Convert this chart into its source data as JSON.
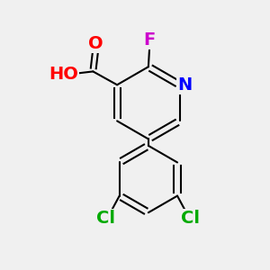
{
  "background_color": "#f0f0f0",
  "bond_color": "#000000",
  "atom_colors": {
    "O_carbonyl": "#ff0000",
    "O_hydroxyl": "#ff0000",
    "H": "#808080",
    "N": "#0000ff",
    "F": "#cc00cc",
    "Cl": "#00aa00",
    "C": "#000000"
  },
  "font_size_atoms": 14,
  "font_size_small": 13
}
